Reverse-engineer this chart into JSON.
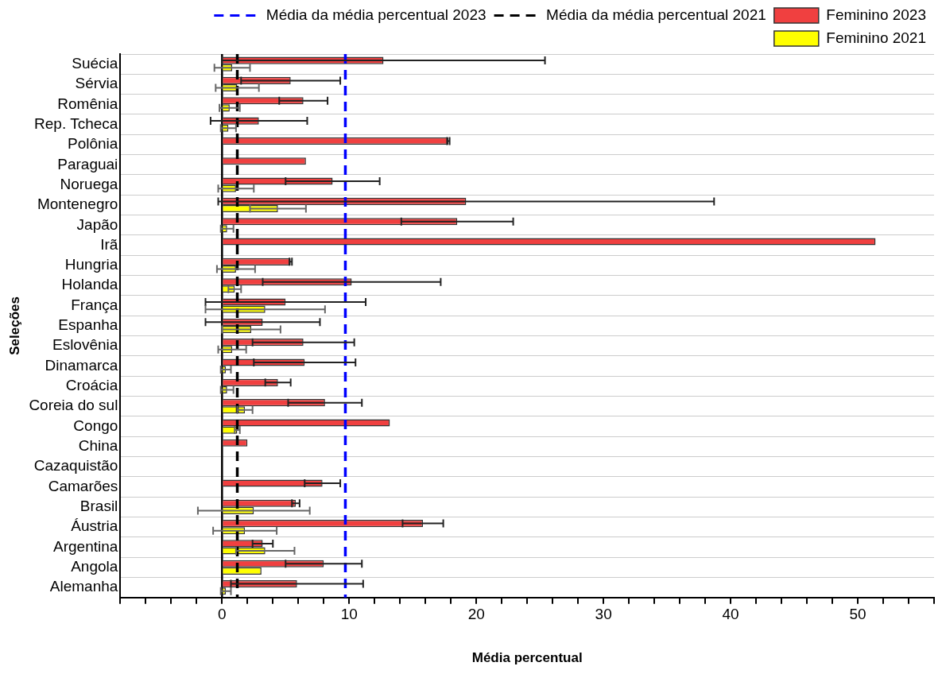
{
  "chart_data": {
    "type": "bar",
    "orientation": "horizontal",
    "xlabel": "Média percentual",
    "ylabel": "Seleções",
    "categories": [
      "Suécia",
      "Sérvia",
      "Romênia",
      "Rep. Tcheca",
      "Polônia",
      "Paraguai",
      "Noruega",
      "Montenegro",
      "Japão",
      "Irã",
      "Hungria",
      "Holanda",
      "França",
      "Espanha",
      "Eslovênia",
      "Dinamarca",
      "Croácia",
      "Coreia do sul",
      "Congo",
      "China",
      "Cazaquistão",
      "Camarões",
      "Brasil",
      "Áustria",
      "Argentina",
      "Angola",
      "Alemanha"
    ],
    "series": [
      {
        "name": "Feminino 2023",
        "color": "#f04040",
        "values": [
          12.7,
          5.4,
          6.4,
          2.9,
          17.8,
          6.6,
          8.7,
          19.2,
          18.5,
          51.4,
          5.4,
          10.2,
          5.0,
          3.2,
          6.4,
          6.5,
          4.4,
          8.1,
          13.2,
          2.0,
          null,
          7.9,
          5.8,
          15.8,
          3.2,
          8.0,
          5.9
        ],
        "errors": [
          12.7,
          3.9,
          1.9,
          3.8,
          0.1,
          null,
          3.7,
          19.5,
          4.4,
          null,
          0.1,
          7.0,
          6.3,
          4.5,
          4.0,
          4.0,
          1.0,
          2.9,
          null,
          null,
          null,
          1.4,
          0.3,
          1.6,
          0.8,
          3.0,
          5.2
        ]
      },
      {
        "name": "Feminino 2021",
        "color": "#ffff00",
        "values": [
          0.8,
          1.2,
          0.6,
          0.5,
          null,
          null,
          1.1,
          4.4,
          0.4,
          null,
          1.1,
          1.0,
          3.4,
          2.3,
          0.8,
          0.3,
          0.4,
          1.8,
          1.2,
          null,
          null,
          null,
          2.5,
          1.8,
          3.4,
          3.1,
          0.3
        ],
        "errors": [
          1.4,
          1.7,
          0.8,
          0.6,
          null,
          null,
          1.4,
          2.2,
          0.5,
          null,
          1.5,
          0.5,
          4.7,
          2.3,
          1.1,
          0.4,
          0.5,
          0.6,
          0.2,
          null,
          null,
          null,
          4.4,
          2.5,
          2.3,
          null,
          0.4
        ]
      }
    ],
    "ref_lines": [
      {
        "axis": "x",
        "value": 9.7,
        "label": "Média da média percentual 2023",
        "color": "#0000ff",
        "line_style": "dashed"
      },
      {
        "axis": "x",
        "value": 1.2,
        "label": "Média da média percentual 2021",
        "color": "#000000",
        "line_style": "dashed"
      }
    ],
    "xlim": [
      -8,
      56
    ],
    "xticks": [
      {
        "value": -8,
        "label": null
      },
      {
        "value": -6,
        "label": null
      },
      {
        "value": -4,
        "label": null
      },
      {
        "value": -2,
        "label": null
      },
      0,
      {
        "value": 2,
        "label": null
      },
      {
        "value": 4,
        "label": null
      },
      {
        "value": 6,
        "label": null
      },
      {
        "value": 8,
        "label": null
      },
      10,
      {
        "value": 12,
        "label": null
      },
      {
        "value": 14,
        "label": null
      },
      {
        "value": 16,
        "label": null
      },
      {
        "value": 18,
        "label": null
      },
      20,
      {
        "value": 22,
        "label": null
      },
      {
        "value": 24,
        "label": null
      },
      {
        "value": 26,
        "label": null
      },
      {
        "value": 28,
        "label": null
      },
      30,
      {
        "value": 32,
        "label": null
      },
      {
        "value": 34,
        "label": null
      },
      {
        "value": 36,
        "label": null
      },
      {
        "value": 38,
        "label": null
      },
      40,
      {
        "value": 42,
        "label": null
      },
      {
        "value": 44,
        "label": null
      },
      {
        "value": 46,
        "label": null
      },
      {
        "value": 48,
        "label": null
      },
      50,
      {
        "value": 52,
        "label": null
      },
      {
        "value": 54,
        "label": null
      },
      {
        "value": 56,
        "label": null
      }
    ],
    "grid": "y",
    "legend": "top right"
  }
}
